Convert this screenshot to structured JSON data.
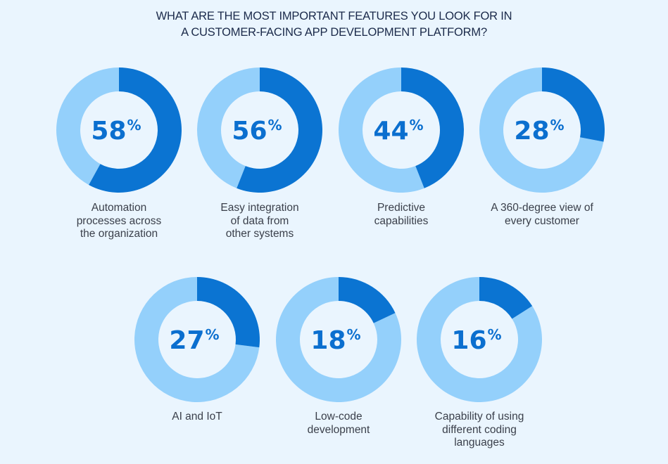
{
  "title_lines": [
    "WHAT ARE THE MOST IMPORTANT FEATURES YOU LOOK FOR IN",
    "A CUSTOMER-FACING APP DEVELOPMENT PLATFORM?"
  ],
  "colors": {
    "filled": "#0b74d2",
    "remaining": "#94d0fb",
    "value_text": "#0b6fcf",
    "background": "#eaf5fe"
  },
  "chart_data": {
    "type": "pie",
    "variant": "donut",
    "title": "WHAT ARE THE MOST IMPORTANT FEATURES YOU LOOK FOR IN A CUSTOMER-FACING APP DEVELOPMENT PLATFORM?",
    "unit": "%",
    "items": [
      {
        "value": 58,
        "display": "58",
        "label_lines": [
          "Automation",
          "processes across",
          "the organization"
        ]
      },
      {
        "value": 56,
        "display": "56",
        "label_lines": [
          "Easy integration",
          "of data from",
          "other systems"
        ]
      },
      {
        "value": 44,
        "display": "44",
        "label_lines": [
          "Predictive",
          "capabilities"
        ]
      },
      {
        "value": 28,
        "display": "28",
        "label_lines": [
          "A 360-degree view of",
          "every customer"
        ]
      },
      {
        "value": 27,
        "display": "27",
        "label_lines": [
          "AI and IoT"
        ]
      },
      {
        "value": 18,
        "display": "18",
        "label_lines": [
          "Low-code",
          "development"
        ]
      },
      {
        "value": 16,
        "display": "16",
        "label_lines": [
          "Capability of using",
          "different coding",
          "languages"
        ]
      }
    ]
  }
}
